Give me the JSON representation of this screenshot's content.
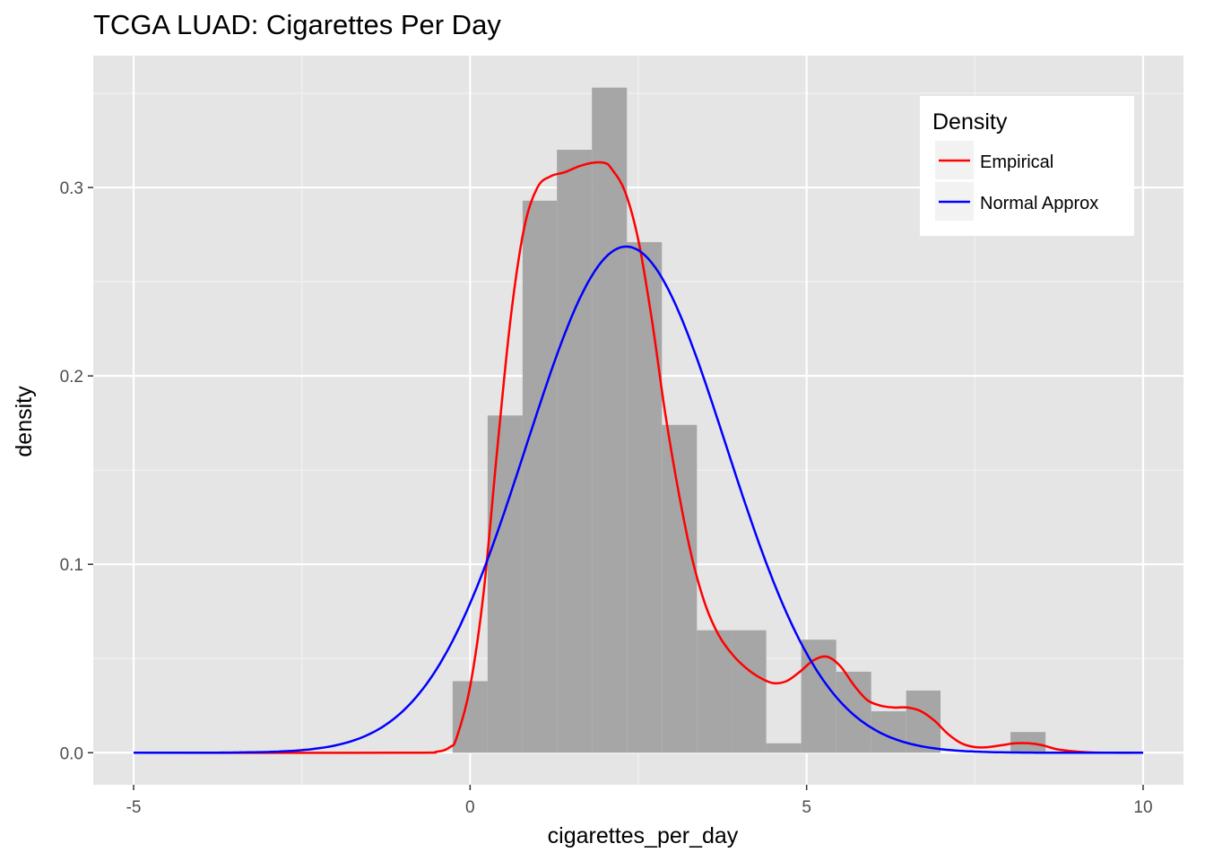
{
  "chart_data": {
    "type": "histogram",
    "title": "TCGA LUAD: Cigarettes Per Day",
    "xlabel": "cigarettes_per_day",
    "ylabel": "density",
    "xlim": [
      -5.6,
      10.6
    ],
    "ylim": [
      -0.017,
      0.37
    ],
    "x_ticks": [
      -5,
      0,
      5,
      10
    ],
    "x_tick_labels": [
      "-5",
      "0",
      "5",
      "10"
    ],
    "y_ticks": [
      0.0,
      0.1,
      0.2,
      0.3
    ],
    "y_tick_labels": [
      "0.0",
      "0.1",
      "0.2",
      "0.3"
    ],
    "grid": true,
    "background": "#e5e5e5",
    "bar_color": "#a6a6a6",
    "bins": [
      {
        "x0": -0.26,
        "x1": 0.26,
        "y": 0.038
      },
      {
        "x0": 0.26,
        "x1": 0.78,
        "y": 0.179
      },
      {
        "x0": 0.78,
        "x1": 1.29,
        "y": 0.293
      },
      {
        "x0": 1.29,
        "x1": 1.81,
        "y": 0.32
      },
      {
        "x0": 1.81,
        "x1": 2.33,
        "y": 0.353
      },
      {
        "x0": 2.33,
        "x1": 2.85,
        "y": 0.271
      },
      {
        "x0": 2.85,
        "x1": 3.37,
        "y": 0.174
      },
      {
        "x0": 3.37,
        "x1": 3.88,
        "y": 0.065
      },
      {
        "x0": 3.88,
        "x1": 4.4,
        "y": 0.065
      },
      {
        "x0": 4.4,
        "x1": 4.92,
        "y": 0.005
      },
      {
        "x0": 4.92,
        "x1": 5.44,
        "y": 0.06
      },
      {
        "x0": 5.44,
        "x1": 5.96,
        "y": 0.043
      },
      {
        "x0": 5.96,
        "x1": 6.48,
        "y": 0.022
      },
      {
        "x0": 6.48,
        "x1": 6.99,
        "y": 0.033
      },
      {
        "x0": 6.99,
        "x1": 7.51,
        "y": 0.0
      },
      {
        "x0": 7.51,
        "x1": 8.03,
        "y": 0.0
      },
      {
        "x0": 8.03,
        "x1": 8.55,
        "y": 0.011
      }
    ],
    "series": [
      {
        "name": "Empirical",
        "color": "#ff0000",
        "x": [
          -5.0,
          -1.0,
          -0.5,
          -0.3,
          -0.2,
          0.0,
          0.2,
          0.4,
          0.6,
          0.8,
          1.0,
          1.2,
          1.4,
          1.6,
          1.8,
          2.0,
          2.1,
          2.3,
          2.5,
          2.7,
          2.9,
          3.1,
          3.3,
          3.5,
          3.7,
          3.9,
          4.1,
          4.3,
          4.5,
          4.7,
          4.9,
          5.1,
          5.3,
          5.5,
          5.7,
          5.9,
          6.1,
          6.3,
          6.5,
          6.7,
          6.9,
          7.1,
          7.3,
          7.5,
          7.7,
          7.9,
          8.1,
          8.3,
          8.5,
          8.7,
          8.9,
          9.2,
          9.5,
          10.0
        ],
        "y": [
          0.0,
          0.0,
          0.0005,
          0.003,
          0.008,
          0.035,
          0.085,
          0.16,
          0.23,
          0.278,
          0.3,
          0.306,
          0.308,
          0.311,
          0.313,
          0.313,
          0.31,
          0.298,
          0.272,
          0.23,
          0.18,
          0.138,
          0.103,
          0.078,
          0.062,
          0.052,
          0.045,
          0.04,
          0.037,
          0.038,
          0.043,
          0.049,
          0.051,
          0.046,
          0.036,
          0.028,
          0.025,
          0.024,
          0.024,
          0.022,
          0.017,
          0.01,
          0.005,
          0.003,
          0.003,
          0.004,
          0.005,
          0.005,
          0.004,
          0.002,
          0.001,
          0.0002,
          0.0,
          0.0
        ]
      },
      {
        "name": "Normal Approx",
        "color": "#0000ff",
        "mean": 2.32,
        "sd": 1.485,
        "x_range": [
          -5,
          10
        ]
      }
    ],
    "legend": {
      "title": "Density",
      "placement": "top-right",
      "entries": [
        "Empirical",
        "Normal Approx"
      ]
    }
  }
}
